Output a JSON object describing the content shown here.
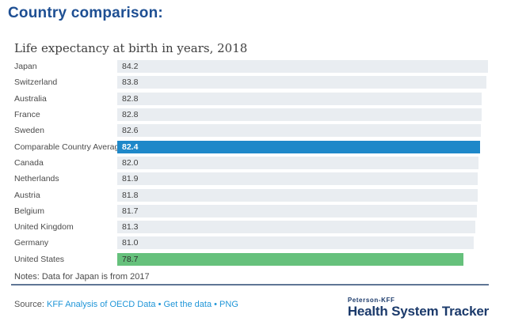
{
  "page_title": "Country comparison:",
  "chart_data": {
    "type": "bar",
    "orientation": "horizontal",
    "title": "Life expectancy at birth in years, 2018",
    "xmax": 84.2,
    "xlim": [
      0,
      84.2
    ],
    "value_label_position": "inside-left",
    "categories": [
      "Japan",
      "Switzerland",
      "Australia",
      "France",
      "Sweden",
      "Comparable Country Average",
      "Canada",
      "Netherlands",
      "Austria",
      "Belgium",
      "United Kingdom",
      "Germany",
      "United States"
    ],
    "values": [
      84.2,
      83.8,
      82.8,
      82.8,
      82.6,
      82.4,
      82.0,
      81.9,
      81.8,
      81.7,
      81.3,
      81.0,
      78.7
    ],
    "bars": [
      {
        "label": "Japan",
        "value": 84.2,
        "style": "default"
      },
      {
        "label": "Switzerland",
        "value": 83.8,
        "style": "default"
      },
      {
        "label": "Australia",
        "value": 82.8,
        "style": "default"
      },
      {
        "label": "France",
        "value": 82.8,
        "style": "default"
      },
      {
        "label": "Sweden",
        "value": 82.6,
        "style": "default"
      },
      {
        "label": "Comparable Country Average",
        "value": 82.4,
        "style": "blue"
      },
      {
        "label": "Canada",
        "value": 82.0,
        "style": "default"
      },
      {
        "label": "Netherlands",
        "value": 81.9,
        "style": "default"
      },
      {
        "label": "Austria",
        "value": 81.8,
        "style": "default"
      },
      {
        "label": "Belgium",
        "value": 81.7,
        "style": "default"
      },
      {
        "label": "United Kingdom",
        "value": 81.3,
        "style": "default"
      },
      {
        "label": "Germany",
        "value": 81.0,
        "style": "default"
      },
      {
        "label": "United States",
        "value": 78.7,
        "style": "green"
      }
    ],
    "colors": {
      "bar_default": "#e9edf1",
      "bar_highlight_blue": "#1e88c9",
      "bar_highlight_green": "#66c17c",
      "title_navy": "#1e4f93",
      "link_blue": "#2096d8",
      "rule_slate": "#5f7695",
      "logo_navy": "#1b3a6b"
    }
  },
  "notes": "Notes: Data for Japan is from 2017",
  "footer": {
    "source_label": "Source:",
    "separator": "•",
    "links": [
      {
        "label": "KFF Analysis of OECD Data"
      },
      {
        "label": "Get the data"
      },
      {
        "label": "PNG"
      }
    ],
    "logo": {
      "top": "Peterson-KFF",
      "bottom": "Health System Tracker"
    }
  }
}
